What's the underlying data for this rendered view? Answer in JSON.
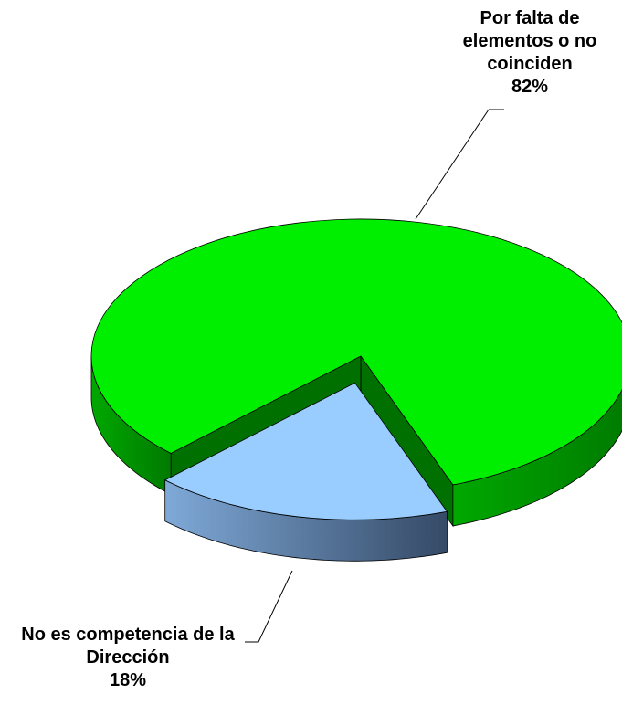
{
  "chart_data": {
    "type": "pie",
    "categories": [
      "Por falta de elementos o no coinciden",
      "No es competencia de la Dirección"
    ],
    "values": [
      82,
      18
    ],
    "value_labels": [
      "82%",
      "18%"
    ],
    "colors": [
      "#00ee00",
      "#99ccff"
    ]
  }
}
